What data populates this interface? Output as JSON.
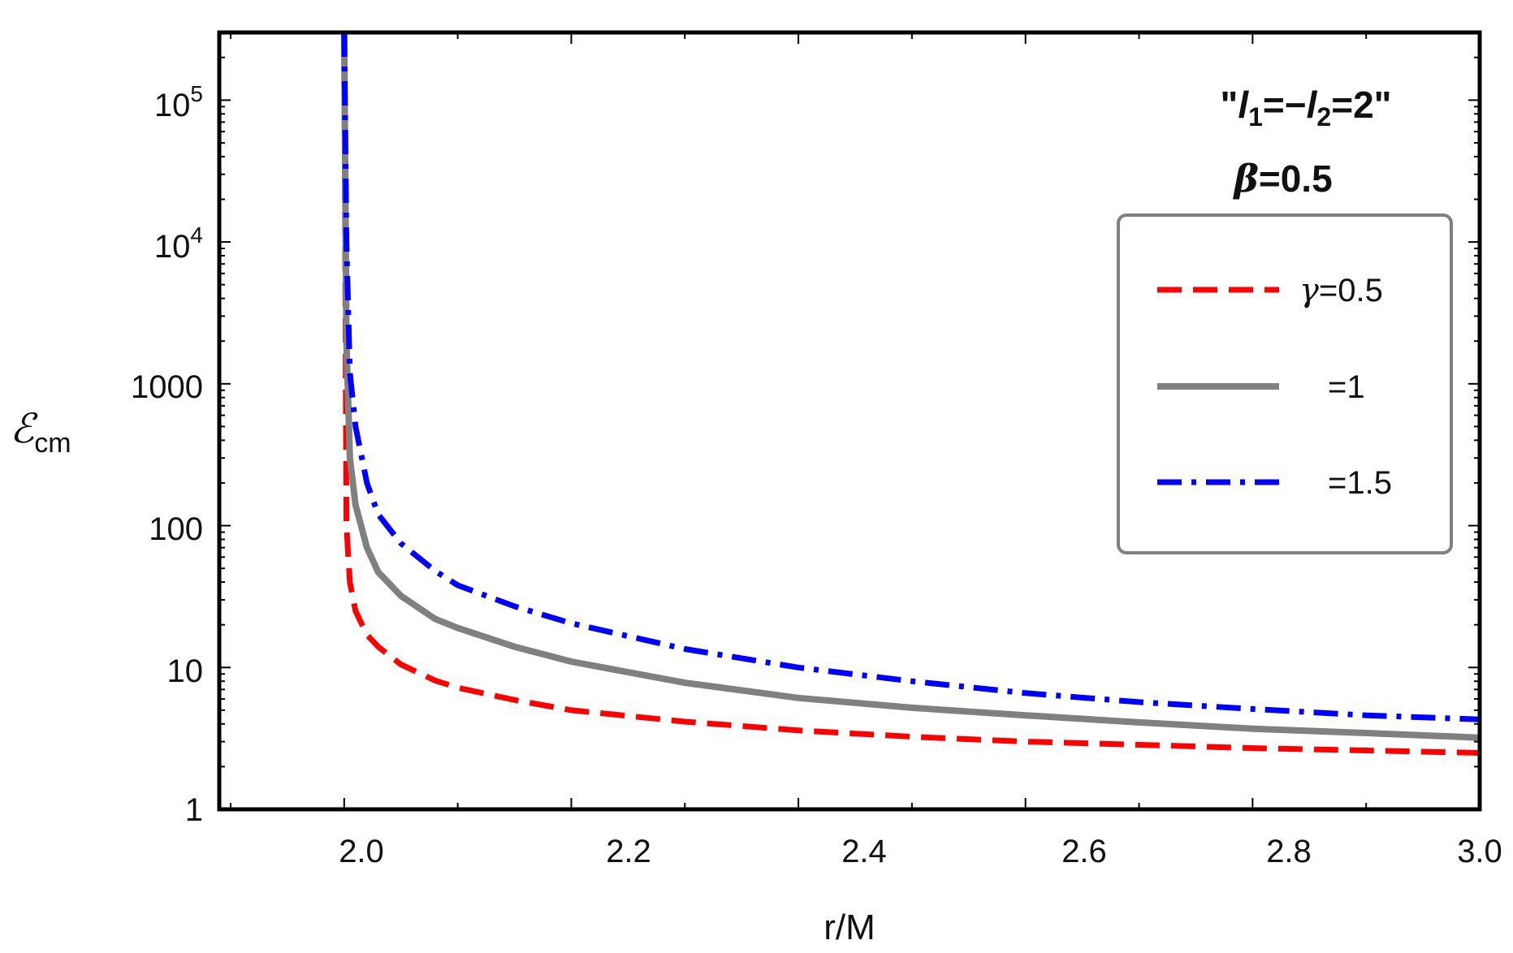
{
  "chart_data": {
    "type": "line",
    "xlabel": "r/M",
    "ylabel": "ℰ",
    "ylabel_sub": "cm",
    "xlim": [
      1.89,
      3.0
    ],
    "ylim": [
      1,
      300000
    ],
    "yscale": "log",
    "x_ticks": [
      "2.0",
      "2.2",
      "2.4",
      "2.6",
      "2.8",
      "3.0"
    ],
    "y_ticks": [
      {
        "value": 1,
        "label": "1",
        "sup": ""
      },
      {
        "value": 10,
        "label": "10",
        "sup": ""
      },
      {
        "value": 100,
        "label": "100",
        "sup": ""
      },
      {
        "value": 1000,
        "label": "1000",
        "sup": ""
      },
      {
        "value": 10000,
        "label": "10",
        "sup": "4"
      },
      {
        "value": 100000,
        "label": "10",
        "sup": "5"
      }
    ],
    "grid": false,
    "legend_position": "right",
    "annotation": {
      "line1_parts": [
        "\"",
        "l",
        "1",
        "=−",
        "l",
        "2",
        "=2\""
      ],
      "line2_symbol": "β",
      "line2_value": "=0.5"
    },
    "series": [
      {
        "name": "γ=0.5",
        "legend_symbol": "γ",
        "legend_value": "=0.5",
        "color": "#ff0000",
        "style": "dashed",
        "x": [
          2.0,
          2.002,
          2.005,
          2.01,
          2.02,
          2.03,
          2.05,
          2.08,
          2.1,
          2.15,
          2.2,
          2.3,
          2.4,
          2.5,
          2.6,
          2.7,
          2.8,
          2.9,
          3.0
        ],
        "values": [
          300000,
          100,
          40,
          25,
          17,
          14,
          10.5,
          8.1,
          7.2,
          5.9,
          5.0,
          4.15,
          3.6,
          3.25,
          3.0,
          2.85,
          2.7,
          2.6,
          2.5
        ]
      },
      {
        "name": "=1",
        "legend_symbol": "",
        "legend_value": "=1",
        "color": "#808080",
        "style": "solid",
        "x": [
          2.0,
          2.002,
          2.005,
          2.01,
          2.02,
          2.03,
          2.05,
          2.08,
          2.1,
          2.15,
          2.2,
          2.3,
          2.4,
          2.5,
          2.6,
          2.7,
          2.8,
          2.9,
          3.0
        ],
        "values": [
          300000,
          2000,
          300,
          140,
          70,
          47,
          32,
          22,
          19,
          14,
          11,
          7.8,
          6.1,
          5.2,
          4.6,
          4.1,
          3.7,
          3.45,
          3.2
        ]
      },
      {
        "name": "=1.5",
        "legend_symbol": "",
        "legend_value": "=1.5",
        "color": "#0000ff",
        "style": "dashdot",
        "x": [
          2.0,
          2.002,
          2.005,
          2.01,
          2.02,
          2.03,
          2.05,
          2.08,
          2.1,
          2.15,
          2.2,
          2.3,
          2.4,
          2.5,
          2.6,
          2.7,
          2.8,
          2.9,
          3.0
        ],
        "values": [
          300000,
          10000,
          1200,
          500,
          200,
          120,
          75,
          48,
          38,
          27,
          20.5,
          13.5,
          10,
          8,
          6.6,
          5.7,
          5.1,
          4.6,
          4.3
        ]
      }
    ]
  }
}
